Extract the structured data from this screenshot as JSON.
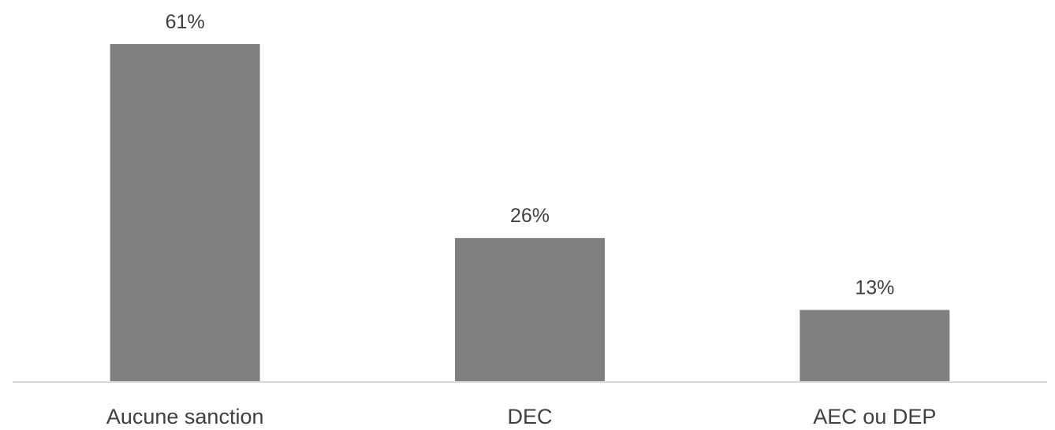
{
  "chart_data": {
    "type": "bar",
    "categories": [
      "Aucune sanction",
      "DEC",
      "AEC ou DEP"
    ],
    "values": [
      61,
      26,
      13
    ],
    "value_labels": [
      "61%",
      "26%",
      "13%"
    ],
    "unit": "%",
    "ylim": [
      0,
      61
    ],
    "grid": false,
    "legend": "none",
    "bar_color": "#808080",
    "axis_color": "#d9d9d9",
    "text_color": "#404040"
  }
}
